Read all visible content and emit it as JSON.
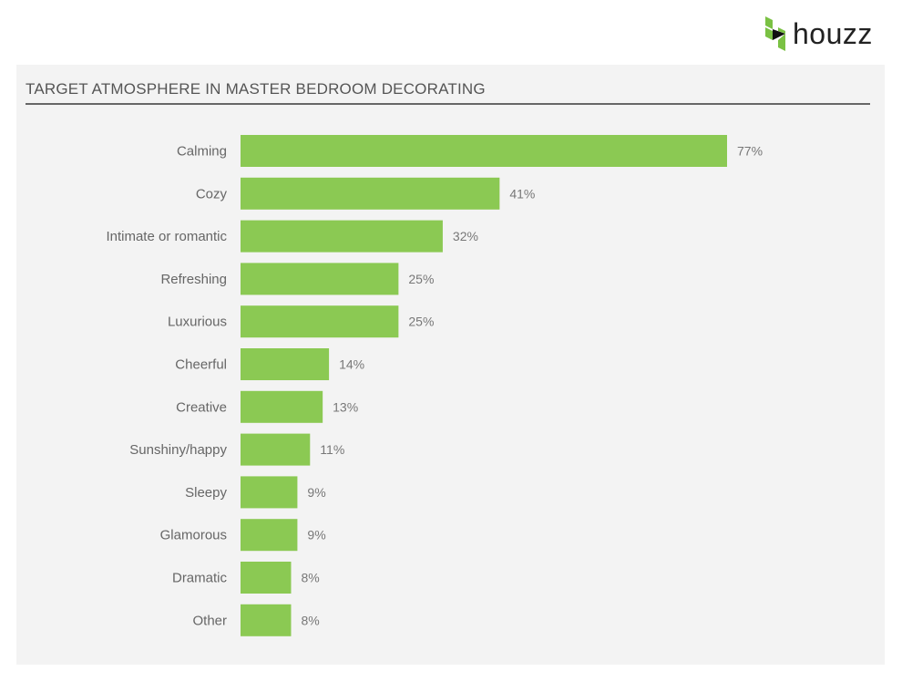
{
  "brand": {
    "name": "houzz",
    "logo_color": "#7ac143"
  },
  "chart_data": {
    "type": "bar",
    "orientation": "horizontal",
    "title": "TARGET ATMOSPHERE IN MASTER BEDROOM DECORATING",
    "categories": [
      "Calming",
      "Cozy",
      "Intimate or romantic",
      "Refreshing",
      "Luxurious",
      "Cheerful",
      "Creative",
      "Sunshiny/happy",
      "Sleepy",
      "Glamorous",
      "Dramatic",
      "Other"
    ],
    "values": [
      77,
      41,
      32,
      25,
      25,
      14,
      13,
      11,
      9,
      9,
      8,
      8
    ],
    "labels": [
      "77%",
      "41%",
      "32%",
      "25%",
      "25%",
      "14%",
      "13%",
      "11%",
      "9%",
      "9%",
      "8%",
      "8%"
    ],
    "unit": "%",
    "xlabel": "",
    "ylabel": "",
    "xlim": [
      0,
      77
    ],
    "grid": false,
    "bar_color": "#8bc953"
  }
}
